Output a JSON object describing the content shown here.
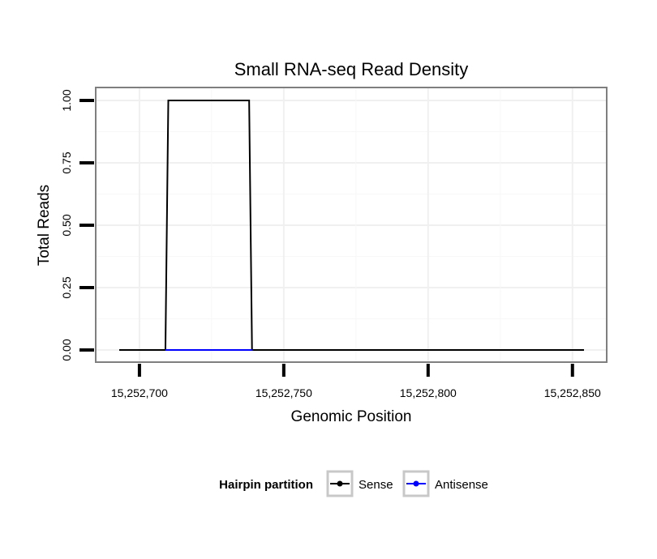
{
  "chart_data": {
    "type": "line",
    "title": "Small RNA-seq Read Density",
    "xlabel": "Genomic Position",
    "ylabel": "Total Reads",
    "xlim": [
      15252693,
      15252854
    ],
    "ylim": [
      0,
      1
    ],
    "x_ticks": [
      15252700,
      15252750,
      15252800,
      15252850
    ],
    "x_tick_labels": [
      "15,252,700",
      "15,252,750",
      "15,252,800",
      "15,252,850"
    ],
    "y_ticks": [
      0,
      0.25,
      0.5,
      0.75,
      1
    ],
    "y_tick_labels": [
      "0.00",
      "0.25",
      "0.50",
      "0.75",
      "1.00"
    ],
    "grid": true,
    "legend": {
      "title": "Hairpin partition",
      "position": "bottom"
    },
    "series": [
      {
        "name": "Sense",
        "color": "#000000",
        "x": [
          15252693,
          15252709,
          15252710,
          15252738,
          15252739,
          15252854
        ],
        "y": [
          0,
          0,
          1,
          1,
          0,
          0
        ]
      },
      {
        "name": "Antisense",
        "color": "#0000ff",
        "x": [
          15252709,
          15252739
        ],
        "y": [
          0,
          0
        ]
      }
    ]
  }
}
